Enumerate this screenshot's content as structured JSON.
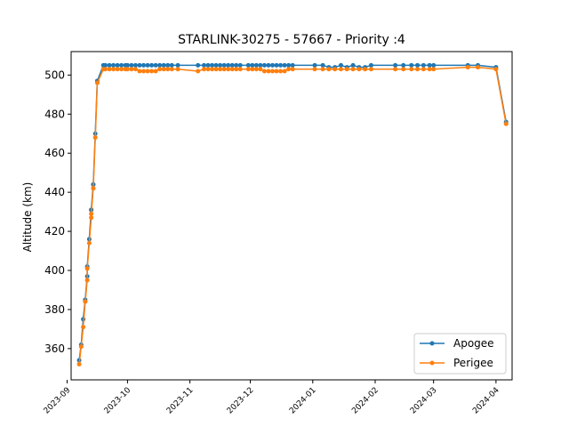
{
  "chart_data": {
    "type": "line",
    "title": "STARLINK-30275 - 57667 - Priority :4",
    "xlabel": "",
    "ylabel": "Altitude (km)",
    "x_axis_type": "date",
    "xlim": [
      "2023-09-03",
      "2024-04-09"
    ],
    "ylim": [
      344,
      512
    ],
    "x_ticks": [
      {
        "date": "2023-09-01",
        "label": "2023-09"
      },
      {
        "date": "2023-10-01",
        "label": "2023-10"
      },
      {
        "date": "2023-11-01",
        "label": "2023-11"
      },
      {
        "date": "2023-12-01",
        "label": "2023-12"
      },
      {
        "date": "2024-01-01",
        "label": "2024-01"
      },
      {
        "date": "2024-02-01",
        "label": "2024-02"
      },
      {
        "date": "2024-03-01",
        "label": "2024-03"
      },
      {
        "date": "2024-04-01",
        "label": "2024-04"
      }
    ],
    "y_ticks": [
      360,
      380,
      400,
      420,
      440,
      460,
      480,
      500
    ],
    "grid": false,
    "legend_position": "lower-right",
    "x": [
      "2023-09-07",
      "2023-09-08",
      "2023-09-09",
      "2023-09-10",
      "2023-09-11",
      "2023-09-11",
      "2023-09-12",
      "2023-09-13",
      "2023-09-13",
      "2023-09-14",
      "2023-09-14",
      "2023-09-15",
      "2023-09-16",
      "2023-09-19",
      "2023-09-20",
      "2023-09-22",
      "2023-09-24",
      "2023-09-26",
      "2023-09-28",
      "2023-09-30",
      "2023-10-01",
      "2023-10-03",
      "2023-10-05",
      "2023-10-07",
      "2023-10-09",
      "2023-10-11",
      "2023-10-13",
      "2023-10-15",
      "2023-10-17",
      "2023-10-19",
      "2023-10-21",
      "2023-10-23",
      "2023-10-26",
      "2023-11-05",
      "2023-11-08",
      "2023-11-10",
      "2023-11-12",
      "2023-11-14",
      "2023-11-16",
      "2023-11-18",
      "2023-11-20",
      "2023-11-22",
      "2023-11-24",
      "2023-11-26",
      "2023-11-30",
      "2023-12-02",
      "2023-12-04",
      "2023-12-06",
      "2023-12-08",
      "2023-12-10",
      "2023-12-12",
      "2023-12-14",
      "2023-12-16",
      "2023-12-18",
      "2023-12-20",
      "2023-12-22",
      "2024-01-02",
      "2024-01-06",
      "2024-01-09",
      "2024-01-12",
      "2024-01-15",
      "2024-01-18",
      "2024-01-21",
      "2024-01-24",
      "2024-01-27",
      "2024-01-30",
      "2024-02-11",
      "2024-02-15",
      "2024-02-19",
      "2024-02-22",
      "2024-02-25",
      "2024-02-28",
      "2024-03-01",
      "2024-03-18",
      "2024-03-23",
      "2024-04-01",
      "2024-04-06"
    ],
    "series": [
      {
        "name": "Apogee",
        "color": "#1f77b4",
        "values": [
          354,
          362,
          375,
          385,
          397,
          402,
          416,
          431,
          431,
          444,
          444,
          470,
          497,
          505,
          505,
          505,
          505,
          505,
          505,
          505,
          505,
          505,
          505,
          505,
          505,
          505,
          505,
          505,
          505,
          505,
          505,
          505,
          505,
          505,
          505,
          505,
          505,
          505,
          505,
          505,
          505,
          505,
          505,
          505,
          505,
          505,
          505,
          505,
          505,
          505,
          505,
          505,
          505,
          505,
          505,
          505,
          505,
          505,
          504,
          504,
          505,
          504,
          505,
          504,
          504,
          505,
          505,
          505,
          505,
          505,
          505,
          505,
          505,
          505,
          505,
          504,
          476
        ]
      },
      {
        "name": "Perigee",
        "color": "#ff7f0e",
        "values": [
          352,
          361,
          371,
          384,
          395,
          401,
          414,
          427,
          429,
          442,
          442,
          468,
          496,
          503,
          503,
          503,
          503,
          503,
          503,
          503,
          503,
          503,
          503,
          502,
          502,
          502,
          502,
          502,
          503,
          503,
          503,
          503,
          503,
          502,
          503,
          503,
          503,
          503,
          503,
          503,
          503,
          503,
          503,
          503,
          503,
          503,
          503,
          503,
          502,
          502,
          502,
          502,
          502,
          502,
          503,
          503,
          503,
          503,
          503,
          503,
          503,
          503,
          503,
          503,
          503,
          503,
          503,
          503,
          503,
          503,
          503,
          503,
          503,
          504,
          504,
          503,
          475
        ]
      }
    ]
  }
}
